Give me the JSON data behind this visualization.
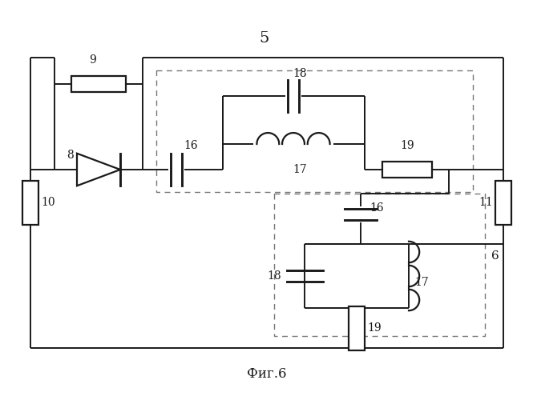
{
  "caption": "Фиг.6",
  "lc": "#1a1a1a",
  "bg": "#ffffff",
  "lw": 1.4,
  "clw": 1.6
}
